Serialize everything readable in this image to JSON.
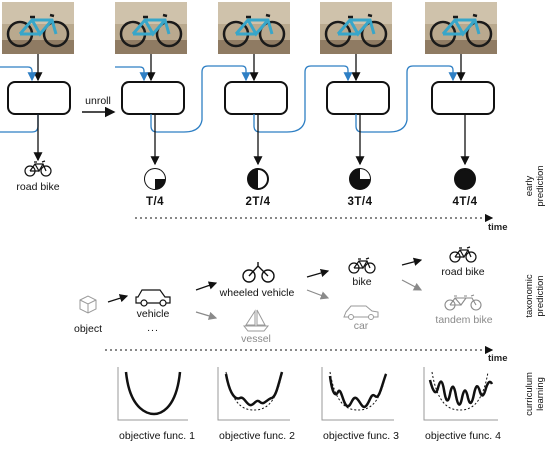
{
  "top": {
    "unroll": "unroll",
    "input_label": "road bike",
    "ticks": [
      "T/4",
      "2T/4",
      "3T/4",
      "4T/4"
    ],
    "time": "time",
    "side_label": [
      "early",
      "prediction"
    ]
  },
  "taxonomy": {
    "object": "object",
    "vehicle": "vehicle",
    "ellipsis": "...",
    "wheeled_vehicle": "wheeled vehicle",
    "vessel": "vessel",
    "bike": "bike",
    "car": "car",
    "road_bike": "road bike",
    "tandem_bike": "tandem bike",
    "time": "time",
    "side_label": [
      "taxonomic",
      "prediction"
    ]
  },
  "curriculum": {
    "labels": [
      "objective func. 1",
      "objective func. 2",
      "objective func. 3",
      "objective func. 4"
    ],
    "side_label": [
      "curriculum",
      "learning"
    ]
  },
  "colors": {
    "arrow_blue": "#2e7fc4",
    "gray": "#8a8a8a",
    "ink": "#111111"
  }
}
